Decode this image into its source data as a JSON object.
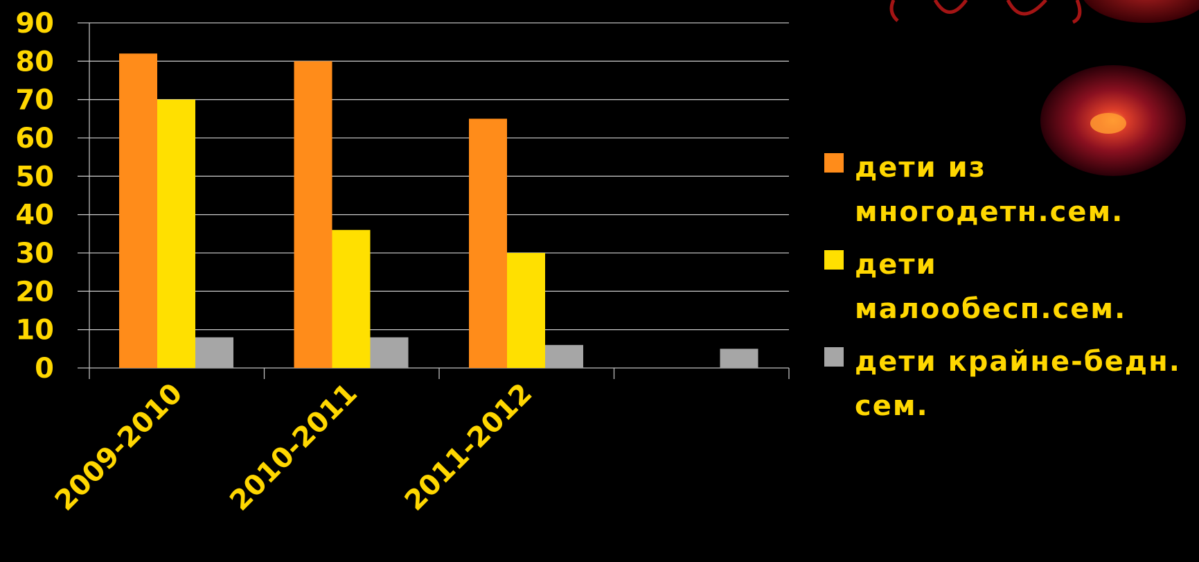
{
  "colors": {
    "background": "#000000",
    "text": "#FFD700",
    "grid": "#BFBFBF"
  },
  "chart_data": {
    "type": "bar",
    "categories": [
      "2009-2010",
      "2010-2011",
      "2011-2012",
      ""
    ],
    "series": [
      {
        "name": "дети из многодетн.сем.",
        "color": "#FF8C1A",
        "values": [
          82,
          80,
          65,
          null
        ]
      },
      {
        "name": "дети малообесп.сем.",
        "color": "#FFE000",
        "values": [
          70,
          36,
          30,
          null
        ]
      },
      {
        "name": "дети крайне-бедн. сем.",
        "color": "#A6A6A6",
        "values": [
          8,
          8,
          6,
          5
        ]
      }
    ],
    "ylim": [
      0,
      90
    ],
    "yticks": [
      "0",
      "10",
      "20",
      "30",
      "40",
      "50",
      "60",
      "70",
      "80",
      "90"
    ],
    "grid": true,
    "legend_position": "right",
    "title": "",
    "xlabel": "",
    "ylabel": ""
  },
  "legend": {
    "items": [
      {
        "line1": "дети из",
        "line2": "многодетн.сем."
      },
      {
        "line1": "дети",
        "line2": "малообесп.сем."
      },
      {
        "line1": "дети крайне-бедн.",
        "line2": "сем."
      }
    ]
  }
}
